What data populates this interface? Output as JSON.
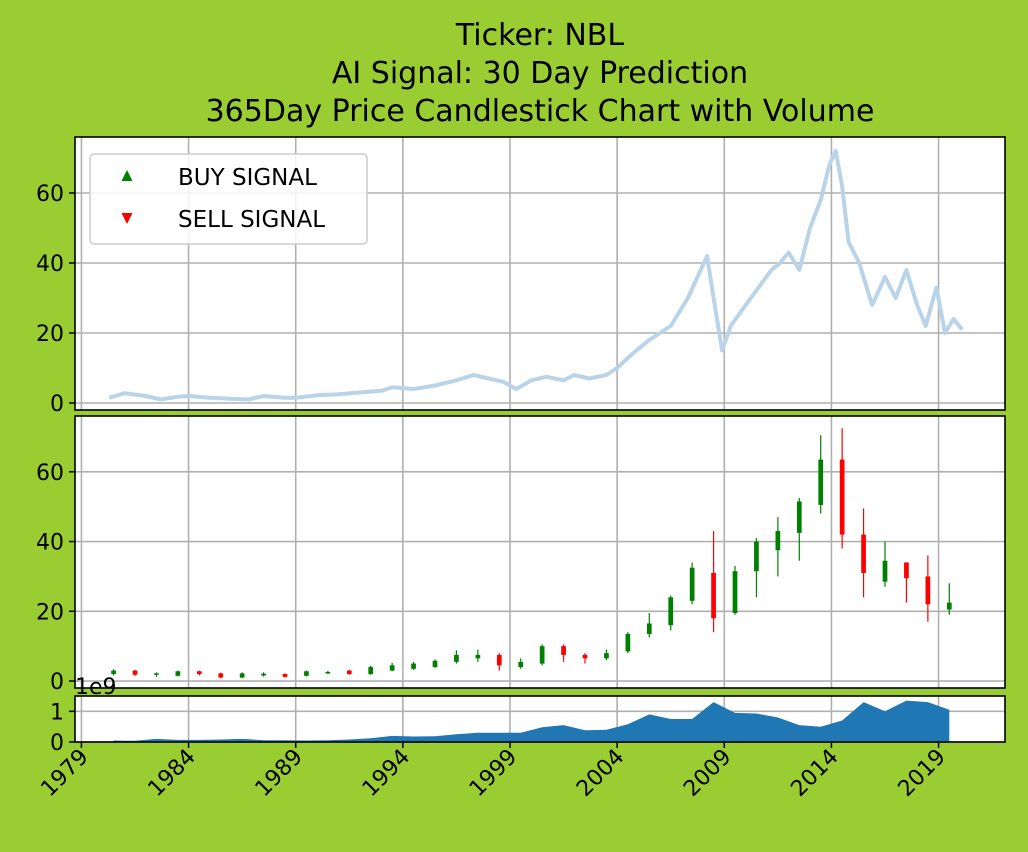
{
  "colors": {
    "background": "#9acd32",
    "plot_bg": "#ffffff",
    "grid": "#b0b0b0",
    "price_line": "#b9d4e8",
    "up": "#008000",
    "down": "#ff0000",
    "volume": "#1f77b4"
  },
  "chart_data": {
    "type": "line",
    "title_lines": [
      "Ticker: NBL",
      "AI Signal: 30 Day Prediction",
      "365Day Price Candlestick Chart with Volume"
    ],
    "xlim": [
      1978.7,
      2022.1
    ],
    "x_ticks": [
      1979,
      1984,
      1989,
      1994,
      1999,
      2004,
      2009,
      2014,
      2019
    ],
    "legend": {
      "placement": "upper-left",
      "entries": [
        {
          "name": "BUY SIGNAL",
          "marker": "triangle-up",
          "color": "#008000"
        },
        {
          "name": "SELL SIGNAL",
          "marker": "triangle-down",
          "color": "#ff0000"
        }
      ]
    },
    "price_panel": {
      "ylim": [
        -2,
        76
      ],
      "y_ticks": [
        0,
        20,
        40,
        60
      ],
      "grid": true,
      "series": {
        "x": [
          1980.3,
          1981,
          1982,
          1982.7,
          1983.5,
          1984,
          1985,
          1986,
          1986.8,
          1987.5,
          1988.5,
          1989,
          1990,
          1991,
          1992,
          1993,
          1993.5,
          1994.5,
          1995.5,
          1996.5,
          1997.3,
          1998,
          1998.7,
          1999.3,
          2000,
          2000.7,
          2001.5,
          2002,
          2002.7,
          2003.5,
          2004,
          2004.7,
          2005.5,
          2006.5,
          2007.3,
          2008.2,
          2008.5,
          2008.9,
          2009.3,
          2010,
          2010.6,
          2011.2,
          2011.6,
          2012,
          2012.5,
          2013,
          2013.5,
          2013.9,
          2014.2,
          2014.5,
          2014.8,
          2015.3,
          2015.9,
          2016.5,
          2017,
          2017.5,
          2018,
          2018.4,
          2018.9,
          2019.3,
          2019.7,
          2020.1
        ],
        "y": [
          1.5,
          2.8,
          2.0,
          1.0,
          1.8,
          2.0,
          1.5,
          1.2,
          1.0,
          2.0,
          1.5,
          1.5,
          2.2,
          2.5,
          3.0,
          3.5,
          4.5,
          4.0,
          5.0,
          6.5,
          8.0,
          7.0,
          6.0,
          4.0,
          6.5,
          7.5,
          6.5,
          8.0,
          7.0,
          8.0,
          10.0,
          14.0,
          18.0,
          22.0,
          30.0,
          42.0,
          30.0,
          15.0,
          22.0,
          28.0,
          33.0,
          38.0,
          40.0,
          43.0,
          38.0,
          50.0,
          58.0,
          68.0,
          72.0,
          62.0,
          46.0,
          40.0,
          28.0,
          36.0,
          30.0,
          38.0,
          28.0,
          22.0,
          33.0,
          20.0,
          24.0,
          21.0
        ]
      }
    },
    "candle_panel": {
      "type": "candlestick",
      "ylim": [
        -2,
        76
      ],
      "y_ticks": [
        0,
        20,
        40,
        60
      ],
      "grid": true,
      "candles": [
        {
          "x": 1980.5,
          "o": 2.0,
          "c": 3.0,
          "h": 3.4,
          "l": 1.6
        },
        {
          "x": 1981.5,
          "o": 3.0,
          "c": 1.8,
          "h": 3.2,
          "l": 1.5
        },
        {
          "x": 1982.5,
          "o": 1.8,
          "c": 2.2,
          "h": 2.5,
          "l": 1.2
        },
        {
          "x": 1983.5,
          "o": 1.5,
          "c": 2.8,
          "h": 3.0,
          "l": 1.3
        },
        {
          "x": 1984.5,
          "o": 2.8,
          "c": 2.0,
          "h": 3.0,
          "l": 1.6
        },
        {
          "x": 1985.5,
          "o": 2.2,
          "c": 1.0,
          "h": 2.4,
          "l": 0.8
        },
        {
          "x": 1986.5,
          "o": 1.0,
          "c": 2.2,
          "h": 2.5,
          "l": 0.8
        },
        {
          "x": 1987.5,
          "o": 1.6,
          "c": 2.1,
          "h": 2.5,
          "l": 1.3
        },
        {
          "x": 1988.5,
          "o": 2.0,
          "c": 1.2,
          "h": 2.2,
          "l": 1.0
        },
        {
          "x": 1989.5,
          "o": 1.5,
          "c": 2.8,
          "h": 3.0,
          "l": 1.3
        },
        {
          "x": 1990.5,
          "o": 2.3,
          "c": 2.6,
          "h": 2.9,
          "l": 2.0
        },
        {
          "x": 1991.5,
          "o": 3.0,
          "c": 2.0,
          "h": 3.2,
          "l": 1.8
        },
        {
          "x": 1992.5,
          "o": 2.0,
          "c": 4.0,
          "h": 4.4,
          "l": 1.8
        },
        {
          "x": 1993.5,
          "o": 3.0,
          "c": 4.5,
          "h": 5.2,
          "l": 2.8
        },
        {
          "x": 1994.5,
          "o": 3.5,
          "c": 5.0,
          "h": 5.5,
          "l": 3.2
        },
        {
          "x": 1995.5,
          "o": 4.0,
          "c": 5.8,
          "h": 6.2,
          "l": 3.8
        },
        {
          "x": 1996.5,
          "o": 5.5,
          "c": 7.5,
          "h": 8.8,
          "l": 5.0
        },
        {
          "x": 1997.5,
          "o": 6.5,
          "c": 7.5,
          "h": 9.0,
          "l": 5.5
        },
        {
          "x": 1998.5,
          "o": 7.5,
          "c": 4.5,
          "h": 8.0,
          "l": 3.0
        },
        {
          "x": 1999.5,
          "o": 4.0,
          "c": 5.5,
          "h": 6.5,
          "l": 3.5
        },
        {
          "x": 2000.5,
          "o": 5.0,
          "c": 10.0,
          "h": 10.5,
          "l": 4.5
        },
        {
          "x": 2001.5,
          "o": 10.0,
          "c": 7.5,
          "h": 10.5,
          "l": 5.5
        },
        {
          "x": 2002.5,
          "o": 7.5,
          "c": 6.5,
          "h": 8.0,
          "l": 5.0
        },
        {
          "x": 2003.5,
          "o": 6.5,
          "c": 8.0,
          "h": 9.0,
          "l": 6.0
        },
        {
          "x": 2004.5,
          "o": 8.5,
          "c": 13.5,
          "h": 14.0,
          "l": 8.0
        },
        {
          "x": 2005.5,
          "o": 13.5,
          "c": 16.5,
          "h": 19.5,
          "l": 12.5
        },
        {
          "x": 2006.5,
          "o": 16.0,
          "c": 24.0,
          "h": 24.5,
          "l": 14.5
        },
        {
          "x": 2007.5,
          "o": 23.0,
          "c": 32.5,
          "h": 34.0,
          "l": 22.0
        },
        {
          "x": 2008.5,
          "o": 31.0,
          "c": 18.0,
          "h": 43.0,
          "l": 14.0
        },
        {
          "x": 2009.5,
          "o": 19.5,
          "c": 31.5,
          "h": 33.0,
          "l": 19.0
        },
        {
          "x": 2010.5,
          "o": 31.5,
          "c": 40.0,
          "h": 41.0,
          "l": 24.0
        },
        {
          "x": 2011.5,
          "o": 37.5,
          "c": 43.0,
          "h": 47.0,
          "l": 30.0
        },
        {
          "x": 2012.5,
          "o": 42.5,
          "c": 51.5,
          "h": 52.5,
          "l": 34.5
        },
        {
          "x": 2013.5,
          "o": 50.5,
          "c": 63.5,
          "h": 70.5,
          "l": 48.0
        },
        {
          "x": 2014.5,
          "o": 63.5,
          "c": 42.0,
          "h": 72.5,
          "l": 38.0
        },
        {
          "x": 2015.5,
          "o": 42.0,
          "c": 31.0,
          "h": 49.5,
          "l": 24.0
        },
        {
          "x": 2016.5,
          "o": 28.5,
          "c": 34.5,
          "h": 40.0,
          "l": 27.0
        },
        {
          "x": 2017.5,
          "o": 34.0,
          "c": 29.5,
          "h": 34.0,
          "l": 22.5
        },
        {
          "x": 2018.5,
          "o": 30.0,
          "c": 22.0,
          "h": 36.0,
          "l": 17.0
        },
        {
          "x": 2019.5,
          "o": 20.5,
          "c": 22.5,
          "h": 28.0,
          "l": 19.0
        }
      ]
    },
    "volume_panel": {
      "type": "area",
      "offset_label": "1e9",
      "ylim": [
        0,
        1.5
      ],
      "y_ticks": [
        0,
        1
      ],
      "grid": true,
      "x": [
        1980.5,
        1981.5,
        1982.5,
        1983.5,
        1984.5,
        1985.5,
        1986.5,
        1987.5,
        1988.5,
        1989.5,
        1990.5,
        1991.5,
        1992.5,
        1993.5,
        1994.5,
        1995.5,
        1996.5,
        1997.5,
        1998.5,
        1999.5,
        2000.5,
        2001.5,
        2002.5,
        2003.5,
        2004.5,
        2005.5,
        2006.5,
        2007.5,
        2008.5,
        2009.5,
        2010.5,
        2011.5,
        2012.5,
        2013.5,
        2014.5,
        2015.5,
        2016.5,
        2017.5,
        2018.5,
        2019.5
      ],
      "values": [
        0.05,
        0.04,
        0.1,
        0.07,
        0.07,
        0.08,
        0.1,
        0.06,
        0.06,
        0.05,
        0.06,
        0.08,
        0.12,
        0.2,
        0.18,
        0.19,
        0.25,
        0.3,
        0.3,
        0.3,
        0.48,
        0.55,
        0.38,
        0.4,
        0.58,
        0.9,
        0.75,
        0.75,
        1.3,
        0.95,
        0.93,
        0.8,
        0.55,
        0.5,
        0.7,
        1.3,
        1.0,
        1.35,
        1.3,
        1.05
      ]
    }
  }
}
